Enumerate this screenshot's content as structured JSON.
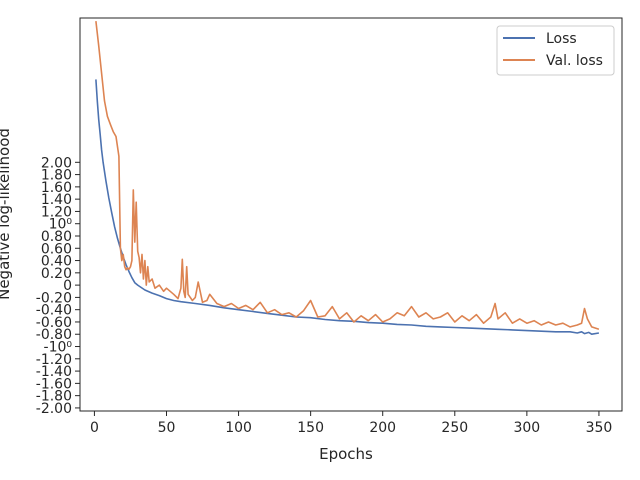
{
  "chart_data": {
    "type": "line",
    "xlabel": "Epochs",
    "ylabel": "Negative log-likelihood",
    "xlim": [
      -10,
      366
    ],
    "ylim": [
      -2.05,
      4.35
    ],
    "xticks": [
      0,
      50,
      100,
      150,
      200,
      250,
      300,
      350
    ],
    "xtick_labels": [
      "0",
      "50",
      "100",
      "150",
      "200",
      "250",
      "300",
      "350"
    ],
    "ytick_values": [
      -2.0,
      -1.8,
      -1.6,
      -1.4,
      -1.2,
      -1.0,
      -0.8,
      -0.6,
      -0.4,
      -0.2,
      0.0,
      0.2,
      0.4,
      0.6,
      0.8,
      1.0,
      1.2,
      1.4,
      1.6,
      1.8,
      2.0
    ],
    "ytick_labels": [
      "-2.00",
      "-1.80",
      "-1.60",
      "-1.40",
      "-1.20",
      "-10⁰",
      "-0.80",
      "-0.60",
      "-0.40",
      "-0.20",
      "0",
      "0.20",
      "0.40",
      "0.60",
      "0.80",
      "10⁰",
      "1.20",
      "1.40",
      "1.60",
      "1.80",
      "2.00"
    ],
    "legend_position": "top-right",
    "grid": false,
    "series": [
      {
        "name": "Loss",
        "color": "#4c72b0",
        "x": [
          1,
          2,
          3,
          4,
          5,
          6,
          8,
          10,
          12,
          14,
          16,
          18,
          20,
          22,
          24,
          26,
          28,
          30,
          35,
          40,
          45,
          50,
          55,
          60,
          70,
          80,
          90,
          100,
          110,
          120,
          130,
          140,
          150,
          160,
          170,
          180,
          190,
          200,
          210,
          220,
          230,
          240,
          250,
          260,
          270,
          280,
          290,
          300,
          310,
          320,
          330,
          335,
          338,
          340,
          343,
          345,
          350
        ],
        "y": [
          3.35,
          3.0,
          2.7,
          2.45,
          2.2,
          2.0,
          1.7,
          1.42,
          1.18,
          0.95,
          0.76,
          0.6,
          0.46,
          0.33,
          0.22,
          0.12,
          0.04,
          0.0,
          -0.08,
          -0.13,
          -0.17,
          -0.22,
          -0.25,
          -0.27,
          -0.3,
          -0.33,
          -0.37,
          -0.4,
          -0.43,
          -0.46,
          -0.49,
          -0.52,
          -0.53,
          -0.56,
          -0.58,
          -0.59,
          -0.61,
          -0.62,
          -0.64,
          -0.65,
          -0.67,
          -0.68,
          -0.69,
          -0.7,
          -0.71,
          -0.72,
          -0.73,
          -0.74,
          -0.75,
          -0.76,
          -0.76,
          -0.78,
          -0.76,
          -0.79,
          -0.77,
          -0.8,
          -0.78
        ]
      },
      {
        "name": "Val. loss",
        "color": "#dd8452",
        "x": [
          1,
          3,
          5,
          7,
          9,
          11,
          13,
          15,
          17,
          18,
          19,
          20,
          21,
          22,
          23,
          24,
          25,
          26,
          27,
          28,
          29,
          30,
          31,
          32,
          33,
          34,
          35,
          36,
          37,
          38,
          40,
          42,
          45,
          48,
          50,
          55,
          58,
          60,
          61,
          62,
          63,
          64,
          65,
          68,
          70,
          72,
          75,
          78,
          80,
          85,
          90,
          95,
          100,
          105,
          110,
          115,
          120,
          125,
          130,
          135,
          140,
          145,
          150,
          155,
          160,
          165,
          170,
          175,
          180,
          185,
          190,
          195,
          200,
          205,
          210,
          215,
          220,
          225,
          230,
          235,
          240,
          245,
          250,
          255,
          260,
          265,
          270,
          275,
          278,
          280,
          285,
          290,
          295,
          300,
          305,
          310,
          315,
          320,
          325,
          330,
          335,
          338,
          340,
          342,
          345,
          350
        ],
        "y": [
          4.3,
          3.9,
          3.45,
          3.0,
          2.75,
          2.62,
          2.5,
          2.42,
          2.1,
          0.6,
          0.4,
          0.5,
          0.3,
          0.25,
          0.28,
          0.26,
          0.3,
          0.4,
          1.55,
          0.7,
          1.35,
          0.55,
          0.45,
          0.2,
          0.5,
          0.1,
          0.4,
          0.0,
          0.3,
          0.05,
          0.1,
          -0.05,
          0.0,
          -0.1,
          -0.05,
          -0.15,
          -0.22,
          -0.05,
          0.42,
          -0.1,
          -0.2,
          0.3,
          -0.15,
          -0.25,
          -0.2,
          0.05,
          -0.28,
          -0.25,
          -0.15,
          -0.3,
          -0.35,
          -0.3,
          -0.38,
          -0.33,
          -0.4,
          -0.28,
          -0.45,
          -0.4,
          -0.48,
          -0.45,
          -0.52,
          -0.42,
          -0.25,
          -0.52,
          -0.5,
          -0.35,
          -0.55,
          -0.45,
          -0.6,
          -0.5,
          -0.58,
          -0.48,
          -0.6,
          -0.55,
          -0.45,
          -0.5,
          -0.35,
          -0.52,
          -0.45,
          -0.55,
          -0.52,
          -0.45,
          -0.6,
          -0.5,
          -0.58,
          -0.48,
          -0.62,
          -0.52,
          -0.3,
          -0.55,
          -0.45,
          -0.62,
          -0.55,
          -0.62,
          -0.58,
          -0.65,
          -0.6,
          -0.65,
          -0.62,
          -0.68,
          -0.65,
          -0.62,
          -0.38,
          -0.55,
          -0.68,
          -0.72
        ]
      }
    ]
  }
}
